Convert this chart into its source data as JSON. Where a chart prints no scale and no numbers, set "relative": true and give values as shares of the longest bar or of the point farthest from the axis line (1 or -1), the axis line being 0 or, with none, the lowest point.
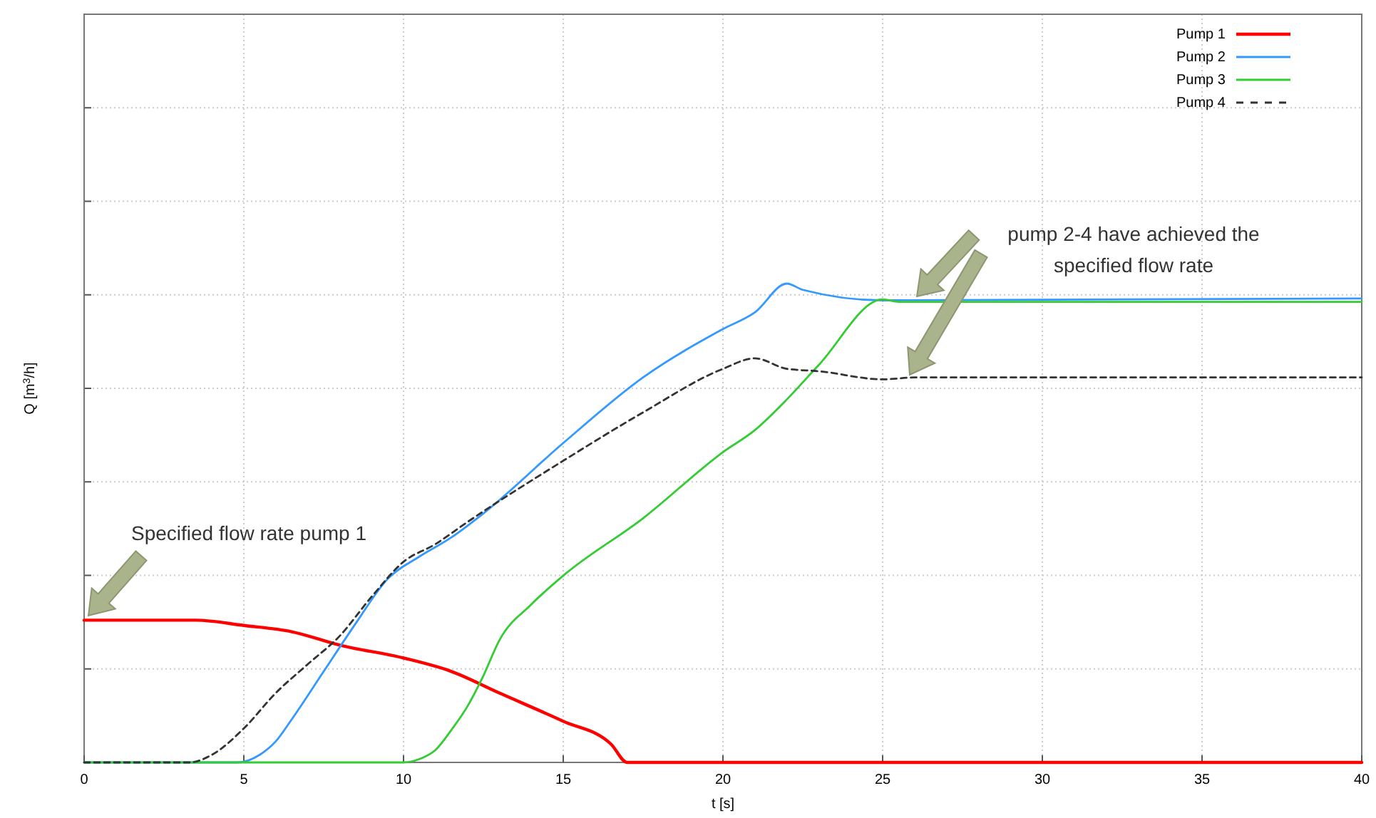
{
  "chart_data": {
    "type": "line",
    "relative": true,
    "xlabel": "t [s]",
    "ylabel": "Q [m$^{3}$/h]",
    "xlim": [
      0,
      40
    ],
    "xticks": [
      0,
      5,
      10,
      15,
      20,
      25,
      30,
      35,
      40
    ],
    "grid": true,
    "legend": "top right",
    "annotations": [
      "Specified flow rate pump 1",
      "pump 2-4 have achieved the specified flow rate"
    ],
    "series": [
      {
        "name": "Pump 1",
        "color": "#ff0000",
        "line_style": "solid",
        "x": [
          0,
          3.5,
          5,
          6.5,
          8,
          10,
          11.5,
          13,
          15,
          16.5,
          17,
          40
        ],
        "values": [
          0.297,
          0.297,
          0.286,
          0.273,
          0.245,
          0.218,
          0.19,
          0.145,
          0.086,
          0.038,
          0,
          0
        ]
      },
      {
        "name": "Pump 2",
        "color": "#3399ff",
        "line_style": "solid",
        "x": [
          0,
          4.8,
          5.5,
          6,
          6.5,
          7.5,
          8.5,
          9.5,
          10.5,
          11.5,
          12.5,
          15,
          17.5,
          20,
          21,
          22,
          22.5,
          25,
          40
        ],
        "values": [
          0,
          0,
          0.016,
          0.044,
          0.09,
          0.19,
          0.29,
          0.383,
          0.43,
          0.47,
          0.52,
          0.667,
          0.804,
          0.905,
          0.94,
          1,
          0.987,
          0.965,
          0.969
        ]
      },
      {
        "name": "Pump 3",
        "color": "#33cc33",
        "line_style": "solid",
        "x": [
          0,
          10,
          10.5,
          11,
          11.5,
          12,
          12.5,
          13,
          14,
          15,
          17.5,
          20,
          21,
          22,
          23,
          25,
          25.5,
          40
        ],
        "values": [
          0,
          0,
          0.007,
          0.026,
          0.068,
          0.117,
          0.181,
          0.255,
          0.33,
          0.39,
          0.51,
          0.648,
          0.694,
          0.758,
          0.83,
          0.967,
          0.962,
          0.962
        ]
      },
      {
        "name": "Pump 4",
        "color": "#333333",
        "line_style": "dashed",
        "x": [
          0,
          3.3,
          4,
          5,
          6,
          7,
          8,
          9,
          10,
          11,
          12,
          15,
          17.5,
          20,
          21,
          22,
          23,
          25,
          26,
          40
        ],
        "values": [
          0,
          0,
          0.016,
          0.071,
          0.145,
          0.205,
          0.264,
          0.346,
          0.419,
          0.456,
          0.502,
          0.63,
          0.731,
          0.822,
          0.844,
          0.822,
          0.817,
          0.8,
          0.804,
          0.804
        ]
      }
    ]
  }
}
